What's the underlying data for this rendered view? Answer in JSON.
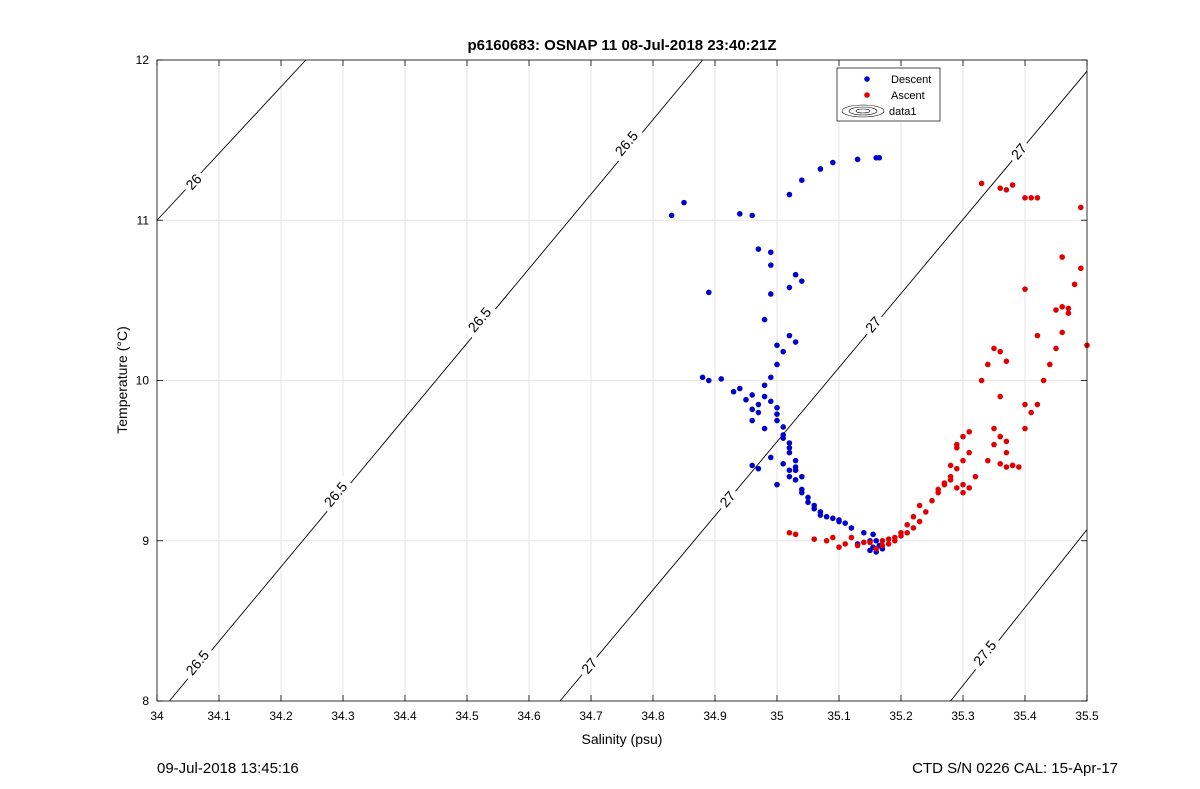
{
  "figure": {
    "footer_left": "09-Jul-2018 13:45:16",
    "footer_right": "CTD S/N 0226  CAL: 15-Apr-17"
  },
  "chart_data": {
    "type": "scatter",
    "title": "p6160683: OSNAP 11 08-Jul-2018 23:40:21Z",
    "xlabel": "Salinity (psu)",
    "ylabel": "Temperature (°C)",
    "xlim": [
      34,
      35.5
    ],
    "ylim": [
      8,
      12
    ],
    "xticks": [
      34,
      34.1,
      34.2,
      34.3,
      34.4,
      34.5,
      34.6,
      34.7,
      34.8,
      34.9,
      35,
      35.1,
      35.2,
      35.3,
      35.4,
      35.5
    ],
    "xtick_labels": [
      "34",
      "34.1",
      "34.2",
      "34.3",
      "34.4",
      "34.5",
      "34.6",
      "34.7",
      "34.8",
      "34.9",
      "35",
      "35.1",
      "35.2",
      "35.3",
      "35.4",
      "35.5"
    ],
    "yticks": [
      8,
      9,
      10,
      11,
      12
    ],
    "ytick_labels": [
      "8",
      "9",
      "10",
      "11",
      "12"
    ],
    "grid": true,
    "legend_position": "top-right",
    "legend": [
      "Descent",
      "Ascent",
      "data1"
    ],
    "colors": {
      "Descent": "#0000cc",
      "Ascent": "#e00000",
      "contour": "#000000",
      "grid": "#e6e6e6"
    },
    "density_contours": [
      {
        "level": "26",
        "points": [
          [
            34.0,
            11.0
          ],
          [
            34.24,
            12.0
          ]
        ],
        "labels": [
          {
            "text": "26",
            "s": 34.059,
            "t": 11.24
          }
        ]
      },
      {
        "level": "26.5",
        "points": [
          [
            34.02,
            8.0
          ],
          [
            34.88,
            12.0
          ]
        ],
        "labels": [
          {
            "text": "26.5",
            "s": 34.065,
            "t": 8.24
          },
          {
            "text": "26.5",
            "s": 34.288,
            "t": 9.29
          },
          {
            "text": "26.5",
            "s": 34.52,
            "t": 10.38
          },
          {
            "text": "26.5",
            "s": 34.757,
            "t": 11.48
          }
        ]
      },
      {
        "level": "27",
        "points": [
          [
            34.65,
            8.0
          ],
          [
            35.5,
            11.93
          ]
        ],
        "labels": [
          {
            "text": "27",
            "s": 34.697,
            "t": 8.22
          },
          {
            "text": "27",
            "s": 34.92,
            "t": 9.26
          },
          {
            "text": "27",
            "s": 35.155,
            "t": 10.35
          },
          {
            "text": "27",
            "s": 35.39,
            "t": 11.43
          }
        ]
      },
      {
        "level": "27.5",
        "points": [
          [
            35.28,
            8.0
          ],
          [
            35.5,
            9.07
          ]
        ],
        "labels": [
          {
            "text": "27.5",
            "s": 35.335,
            "t": 8.3
          }
        ]
      }
    ],
    "series": [
      {
        "name": "Descent",
        "marker": "dot",
        "color": "#0000cc",
        "x": [
          35.16,
          35.155,
          35.15,
          35.14,
          35.12,
          35.11,
          35.1,
          35.08,
          35.07,
          35.06,
          35.05,
          35.04,
          35.03,
          35.03,
          35.03,
          35.02,
          35.02,
          35.01,
          35.01,
          35.0,
          35.0,
          35.0,
          34.99,
          34.98,
          34.97,
          34.96,
          34.95,
          34.94,
          34.93,
          34.91,
          34.89,
          34.88,
          34.98,
          34.99,
          35.01,
          35.02,
          35.03,
          35.04,
          35.02,
          35.01,
          34.99,
          34.98,
          34.96,
          34.97,
          34.96,
          35.0,
          35.01,
          35.03,
          35.02,
          35.0,
          34.98,
          34.99,
          34.97,
          34.99,
          35.03,
          35.04,
          35.02,
          34.99,
          34.96,
          34.94,
          34.89,
          34.85,
          34.83,
          35.02,
          35.04,
          35.07,
          35.09,
          35.13,
          35.16,
          35.165,
          35.155,
          35.16,
          35.165,
          35.17,
          35.15,
          35.13,
          35.1,
          35.09,
          35.07,
          35.06,
          35.05,
          35.04,
          34.97,
          34.96,
          35.0,
          35.02
        ],
        "y": [
          8.93,
          8.96,
          9.0,
          9.05,
          9.08,
          9.11,
          9.13,
          9.15,
          9.18,
          9.22,
          9.27,
          9.32,
          9.38,
          9.44,
          9.5,
          9.55,
          9.61,
          9.66,
          9.71,
          9.75,
          9.79,
          9.83,
          9.87,
          9.9,
          9.85,
          9.91,
          9.88,
          9.95,
          9.93,
          10.01,
          10.0,
          10.02,
          9.97,
          10.02,
          9.64,
          9.58,
          9.46,
          9.4,
          9.44,
          9.48,
          9.52,
          9.7,
          9.75,
          9.8,
          9.82,
          10.1,
          10.18,
          10.24,
          10.28,
          10.22,
          10.38,
          10.54,
          10.82,
          10.72,
          10.66,
          10.62,
          10.58,
          10.8,
          11.03,
          11.04,
          10.55,
          11.11,
          11.03,
          11.16,
          11.25,
          11.32,
          11.36,
          11.38,
          11.39,
          11.39,
          9.04,
          9.0,
          8.97,
          8.95,
          8.94,
          8.98,
          9.12,
          9.14,
          9.16,
          9.2,
          9.24,
          9.3,
          9.45,
          9.47,
          9.35,
          9.4
        ]
      },
      {
        "name": "Ascent",
        "marker": "dot",
        "color": "#e00000",
        "x": [
          35.02,
          35.03,
          35.06,
          35.09,
          35.11,
          35.13,
          35.15,
          35.17,
          35.18,
          35.19,
          35.2,
          35.21,
          35.22,
          35.23,
          35.24,
          35.25,
          35.26,
          35.27,
          35.28,
          35.29,
          35.3,
          35.31,
          35.29,
          35.3,
          35.31,
          35.3,
          35.29,
          35.28,
          35.27,
          35.26,
          35.3,
          35.31,
          35.32,
          35.28,
          35.29,
          35.23,
          35.22,
          35.21,
          35.2,
          35.19,
          35.18,
          35.17,
          35.16,
          35.14,
          35.12,
          35.1,
          35.08,
          35.34,
          35.35,
          35.36,
          35.37,
          35.38,
          35.39,
          35.4,
          35.41,
          35.42,
          35.43,
          35.44,
          35.45,
          35.46,
          35.47,
          35.48,
          35.49,
          35.5,
          35.33,
          35.34,
          35.35,
          35.36,
          35.37,
          35.35,
          35.36,
          35.37,
          35.38,
          35.36,
          35.37,
          35.38,
          35.4,
          35.41,
          35.42,
          35.45,
          35.46,
          35.47,
          35.33,
          35.36,
          35.37,
          35.4,
          35.42,
          35.46,
          35.49,
          35.4
        ],
        "y": [
          9.05,
          9.04,
          9.01,
          9.02,
          8.98,
          8.97,
          8.99,
          9.0,
          9.01,
          9.02,
          9.03,
          9.05,
          9.08,
          9.12,
          9.18,
          9.25,
          9.3,
          9.35,
          9.4,
          9.45,
          9.5,
          9.55,
          9.6,
          9.65,
          9.68,
          9.35,
          9.33,
          9.38,
          9.36,
          9.32,
          9.3,
          9.33,
          9.4,
          9.47,
          9.58,
          9.22,
          9.15,
          9.1,
          9.05,
          9.0,
          8.98,
          8.97,
          8.95,
          8.99,
          9.02,
          8.96,
          9.0,
          9.5,
          9.6,
          9.65,
          9.55,
          9.47,
          9.46,
          9.7,
          9.8,
          9.85,
          10.0,
          10.1,
          10.2,
          10.3,
          10.45,
          10.6,
          10.7,
          10.22,
          10.0,
          10.1,
          10.2,
          10.18,
          10.12,
          9.7,
          9.48,
          9.46,
          9.47,
          11.2,
          11.19,
          11.22,
          11.14,
          11.14,
          11.14,
          10.44,
          10.46,
          10.42,
          11.23,
          9.9,
          9.62,
          10.57,
          10.28,
          10.77,
          11.08,
          9.85
        ]
      }
    ]
  }
}
